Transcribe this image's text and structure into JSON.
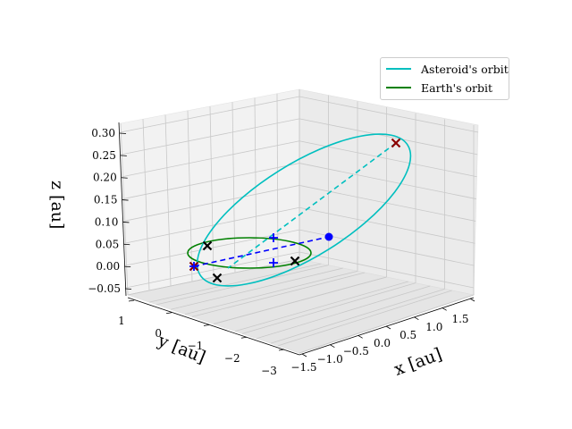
{
  "chart_data": {
    "type": "line",
    "projection": "3d",
    "title": "",
    "xlabel": "x [au]",
    "ylabel": "y [au]",
    "zlabel": "z [au]",
    "xlim": [
      -1.5,
      1.5
    ],
    "ylim": [
      -3,
      1
    ],
    "zlim": [
      -0.05,
      0.3
    ],
    "x_ticks": [
      "−1.5",
      "−1.0",
      "−0.5",
      "0.0",
      "0.5",
      "1.0",
      "1.5"
    ],
    "y_ticks": [
      "1",
      "0",
      "−1",
      "−2",
      "−3"
    ],
    "z_ticks": [
      "−0.05",
      "0.00",
      "0.05",
      "0.10",
      "0.15",
      "0.20",
      "0.25",
      "0.30"
    ],
    "grid": true,
    "legend_position": "top-right",
    "series": [
      {
        "name": "Asteroid's orbit",
        "color": "#00bfbf",
        "style": "ellipse",
        "inclination_deg": 11.3
      },
      {
        "name": "Earth's orbit",
        "color": "#008000",
        "style": "circle",
        "radius_au": 1.0
      }
    ],
    "markers": [
      {
        "kind": "x",
        "color": "#000000",
        "label": "Earth position 1"
      },
      {
        "kind": "x",
        "color": "#000000",
        "label": "Earth position 2"
      },
      {
        "kind": "x",
        "color": "#000000",
        "label": "Earth position 3"
      },
      {
        "kind": "x",
        "color": "#8b0000",
        "label": "Asteroid aphelion"
      },
      {
        "kind": "x",
        "color": "#8b0000",
        "label": "Asteroid perihelion"
      },
      {
        "kind": "point",
        "color": "#0000ff",
        "label": "Sun"
      },
      {
        "kind": "plus",
        "color": "#0000ff",
        "label": "Node"
      },
      {
        "kind": "plus",
        "color": "#0000ff",
        "label": "Node"
      },
      {
        "kind": "plus",
        "color": "#0000ff",
        "label": "Node"
      }
    ],
    "dashed_lines": [
      {
        "color": "#00bfbf",
        "label": "Asteroid line of apsides"
      },
      {
        "color": "#0000ff",
        "label": "Line of nodes"
      }
    ]
  }
}
